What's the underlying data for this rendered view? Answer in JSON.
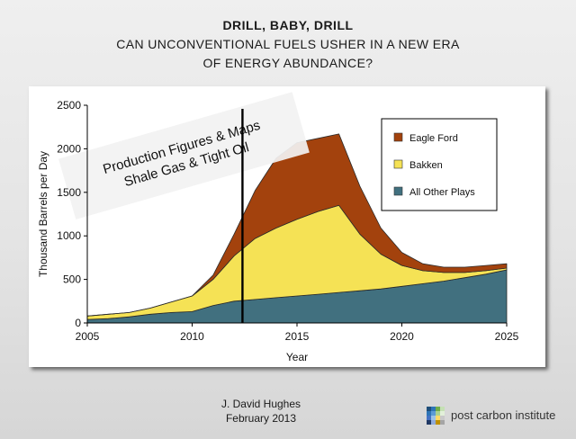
{
  "header": {
    "line1": "DRILL, BABY, DRILL",
    "line2": "CAN UNCONVENTIONAL FUELS USHER IN A NEW ERA",
    "line3": "OF ENERGY ABUNDANCE?"
  },
  "banner": {
    "line1": "Production Figures & Maps",
    "line2": "Shale Gas & Tight Oil"
  },
  "footer": {
    "author": "J. David Hughes",
    "date": "February 2013"
  },
  "logo": {
    "text": "post carbon institute",
    "colors": [
      "#1f4e79",
      "#2e75b6",
      "#70ad47",
      "#c5e0b4",
      "#2e75b6",
      "#5b9bd5",
      "#a9d18e",
      "#e2f0d9",
      "#4472c4",
      "#9dc3e6",
      "#ffd966",
      "#c9c9c9",
      "#203864",
      "#8faadc",
      "#bf9000",
      "#a5a5a5"
    ]
  },
  "chart_data": {
    "type": "area",
    "stacked": true,
    "title": "",
    "xlabel": "Year",
    "ylabel": "Thousand Barrels per Day",
    "xlim": [
      2005,
      2025
    ],
    "ylim": [
      0,
      2500
    ],
    "xticks": [
      2005,
      2010,
      2015,
      2020,
      2025
    ],
    "yticks": [
      0,
      500,
      1000,
      1500,
      2000,
      2500
    ],
    "grid": false,
    "legend_position": "top-right",
    "marker_line_x": 2012.4,
    "series": [
      {
        "name": "All Other Plays",
        "color": "#41707f",
        "x": [
          2005,
          2006,
          2007,
          2008,
          2009,
          2010,
          2011,
          2012,
          2013,
          2014,
          2015,
          2016,
          2017,
          2018,
          2019,
          2020,
          2021,
          2022,
          2023,
          2024,
          2025
        ],
        "values": [
          40,
          50,
          70,
          100,
          120,
          130,
          200,
          250,
          270,
          290,
          310,
          330,
          350,
          370,
          390,
          420,
          450,
          480,
          520,
          560,
          610
        ]
      },
      {
        "name": "Bakken",
        "color": "#f5e255",
        "x": [
          2005,
          2006,
          2007,
          2008,
          2009,
          2010,
          2011,
          2012,
          2013,
          2014,
          2015,
          2016,
          2017,
          2018,
          2019,
          2020,
          2021,
          2022,
          2023,
          2024,
          2025
        ],
        "values": [
          40,
          50,
          50,
          70,
          120,
          180,
          300,
          520,
          700,
          800,
          880,
          950,
          1000,
          650,
          400,
          240,
          150,
          100,
          60,
          40,
          20
        ]
      },
      {
        "name": "Eagle Ford",
        "color": "#a3420d",
        "x": [
          2005,
          2006,
          2007,
          2008,
          2009,
          2010,
          2011,
          2012,
          2013,
          2014,
          2015,
          2016,
          2017,
          2018,
          2019,
          2020,
          2021,
          2022,
          2023,
          2024,
          2025
        ],
        "values": [
          0,
          0,
          0,
          0,
          0,
          0,
          50,
          250,
          550,
          800,
          880,
          840,
          820,
          550,
          300,
          150,
          80,
          60,
          60,
          60,
          50
        ]
      }
    ]
  }
}
